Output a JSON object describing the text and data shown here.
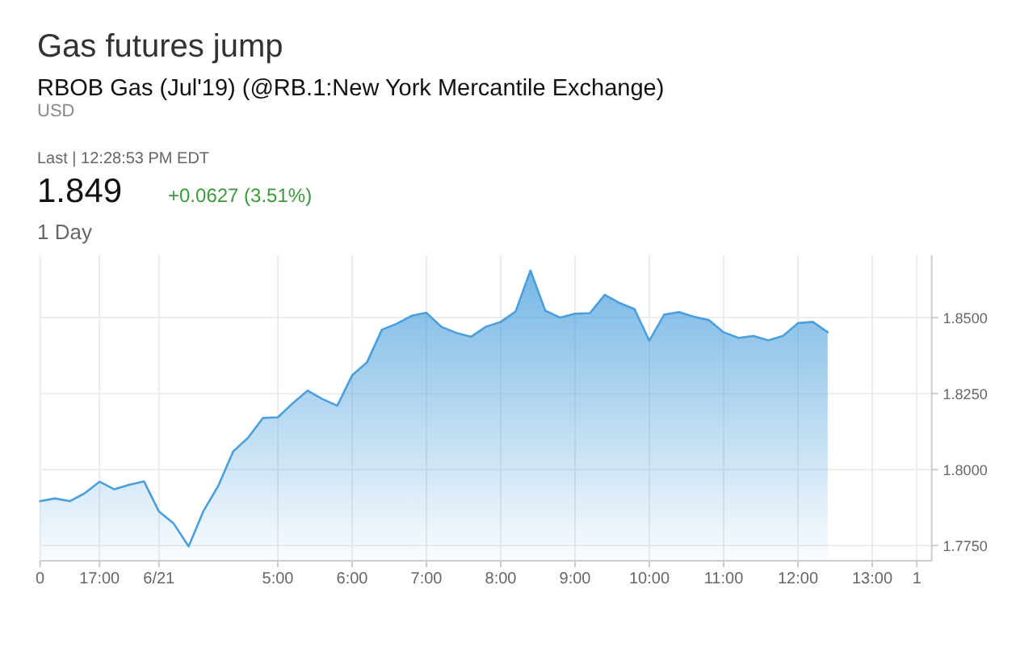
{
  "chart_data": {
    "type": "area",
    "title": "Gas futures jump",
    "subtitle": "RBOB Gas (Jul'19) (@RB.1:New York Mercantile Exchange)",
    "annotations": [
      "USD",
      "Last | 12:28:53 PM EDT",
      "1.849",
      "+0.0627 (3.51%)",
      "1 Day"
    ],
    "categories": [
      "0",
      null,
      null,
      null,
      "17:00",
      null,
      null,
      null,
      "6/21",
      null,
      null,
      null,
      null,
      null,
      null,
      null,
      "5:00",
      null,
      null,
      null,
      null,
      "6:00",
      null,
      null,
      null,
      null,
      "7:00",
      null,
      null,
      null,
      null,
      "8:00",
      null,
      null,
      null,
      null,
      "9:00",
      null,
      null,
      null,
      null,
      "10:00",
      null,
      null,
      null,
      null,
      "11:00",
      null,
      null,
      null,
      null,
      "12:00",
      null,
      null,
      null,
      null,
      "13:00",
      null,
      null,
      "1",
      null
    ],
    "series": [
      {
        "color": "#4a9fdc",
        "values": [
          1.7896,
          1.7905,
          1.7896,
          1.7922,
          1.796,
          1.7935,
          1.795,
          1.7961,
          1.7862,
          1.7822,
          1.7747,
          1.7864,
          1.7947,
          1.806,
          1.8105,
          1.817,
          1.8172,
          1.8218,
          1.826,
          1.8232,
          1.821,
          1.831,
          1.8353,
          1.846,
          1.848,
          1.8506,
          1.8516,
          1.847,
          1.845,
          1.8437,
          1.847,
          1.8486,
          1.852,
          1.8655,
          1.8523,
          1.85,
          1.8513,
          1.8515,
          1.8575,
          1.8548,
          1.8528,
          1.8424,
          1.851,
          1.8518,
          1.8503,
          1.8492,
          1.8452,
          1.8433,
          1.844,
          1.8425,
          1.844,
          1.8482,
          1.8486,
          1.8452,
          null,
          null,
          null,
          null,
          null,
          null,
          null
        ]
      }
    ],
    "ylim": [
      1.77,
      1.8705
    ],
    "yticks": [
      {
        "value": 1.775,
        "label": "1.7750"
      },
      {
        "value": 1.8,
        "label": "1.8000"
      },
      {
        "value": 1.825,
        "label": "1.8250"
      },
      {
        "value": 1.85,
        "label": "1.8500"
      }
    ],
    "grid": true
  }
}
